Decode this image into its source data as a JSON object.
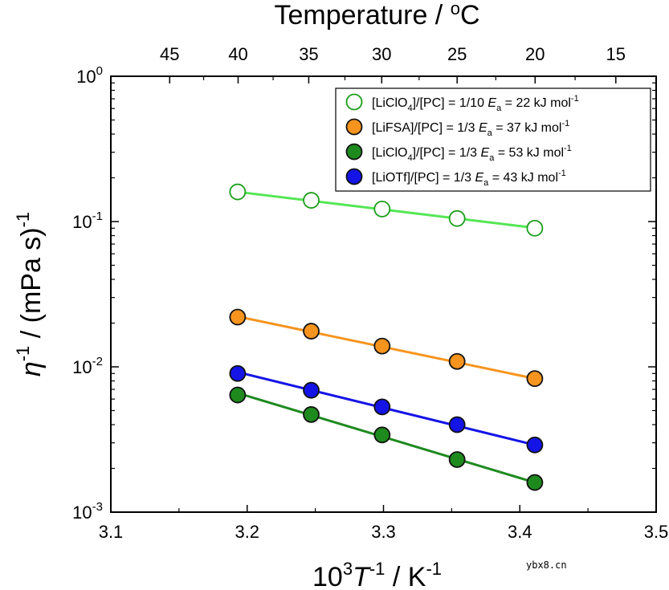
{
  "chart_data": {
    "type": "scatter",
    "title": "",
    "xlabel": {
      "base": "10",
      "sup1": "3",
      "var": "T",
      "sup2": "-1",
      "rest": " / K",
      "sup3": "-1"
    },
    "ylabel": {
      "var": "η",
      "sup1": "-1",
      "rest": " / (mPa s)",
      "sup2": "-1"
    },
    "top_xlabel": {
      "text": "Temperature / ",
      "sup": "o",
      "unit": "C"
    },
    "xlim": [
      3.1,
      3.5
    ],
    "ylim": [
      0.001,
      1
    ],
    "yscale": "log",
    "x_ticks": [
      3.1,
      3.2,
      3.3,
      3.4,
      3.5
    ],
    "x_tick_labels": [
      "3.1",
      "3.2",
      "3.3",
      "3.4",
      "3.5"
    ],
    "y_ticks": [
      {
        "value": 0.001,
        "base": "10",
        "exp": "-3"
      },
      {
        "value": 0.01,
        "base": "10",
        "exp": "-2"
      },
      {
        "value": 0.1,
        "base": "10",
        "exp": "-1"
      },
      {
        "value": 1,
        "base": "10",
        "exp": "0"
      }
    ],
    "top_ticks_celsius": [
      45,
      40,
      35,
      30,
      25,
      20,
      15
    ],
    "top_tick_labels": [
      "45",
      "40",
      "35",
      "30",
      "25",
      "20",
      "15"
    ],
    "series": [
      {
        "name": "[LiClO4]/[PC] = 1/10 Ea = 22 kJ mol-1",
        "label_parts": [
          "[LiClO",
          "4",
          "]/[PC] = 1/10  ",
          "E",
          "a",
          " = 22 kJ mol",
          "-1"
        ],
        "marker": "open",
        "color": "#1a9e1a",
        "line_color": "#55e655",
        "x": [
          3.193,
          3.247,
          3.299,
          3.354,
          3.411
        ],
        "y": [
          0.16,
          0.14,
          0.122,
          0.105,
          0.09
        ],
        "fit": [
          [
            3.193,
            0.16
          ],
          [
            3.411,
            0.0905
          ]
        ]
      },
      {
        "name": "[LiFSA]/[PC] = 1/3 Ea = 37 kJ mol-1",
        "label_parts": [
          "[LiFSA]/[PC] = 1/3  ",
          "",
          "",
          "",
          "",
          " = 37 kJ mol",
          "-1"
        ],
        "label_simple": [
          "[LiFSA]/[PC] = 1/3  ",
          "E",
          "a",
          " = 37 kJ mol",
          "-1"
        ],
        "marker": "filled",
        "color": "#f7941d",
        "line_color": "#f7941d",
        "x": [
          3.193,
          3.247,
          3.299,
          3.354,
          3.411
        ],
        "y": [
          0.022,
          0.0176,
          0.0139,
          0.0109,
          0.0083
        ],
        "fit": [
          [
            3.193,
            0.0222
          ],
          [
            3.411,
            0.0083
          ]
        ]
      },
      {
        "name": "[LiClO4]/[PC] = 1/3 Ea = 53 kJ mol-1",
        "label_parts": [
          "[LiClO",
          "4",
          "]/[PC] = 1/3  ",
          "E",
          "a",
          " = 53 kJ mol",
          "-1"
        ],
        "marker": "filled",
        "color": "#1e8a1e",
        "line_color": "#1e8a1e",
        "x": [
          3.193,
          3.247,
          3.299,
          3.354,
          3.411
        ],
        "y": [
          0.0064,
          0.0047,
          0.0034,
          0.0023,
          0.0016
        ],
        "fit": [
          [
            3.193,
            0.0066
          ],
          [
            3.411,
            0.0016
          ]
        ]
      },
      {
        "name": "[LiOTf]/[PC] = 1/3 Ea = 43 kJ mol-1",
        "label_parts": [
          "[LiOTf]/[PC] = 1/3  ",
          "",
          "",
          "",
          "",
          " = 43 kJ mol",
          "-1"
        ],
        "label_simple": [
          "[LiOTf]/[PC] = 1/3  ",
          "E",
          "a",
          " = 43 kJ mol",
          "-1"
        ],
        "marker": "filled",
        "color": "#1414e6",
        "line_color": "#1414e6",
        "x": [
          3.193,
          3.247,
          3.299,
          3.354,
          3.411
        ],
        "y": [
          0.009,
          0.0069,
          0.0053,
          0.004,
          0.0029
        ],
        "fit": [
          [
            3.193,
            0.0092
          ],
          [
            3.411,
            0.0029
          ]
        ]
      }
    ],
    "legend_position": "top-right"
  },
  "watermark": "ybx8.cn"
}
